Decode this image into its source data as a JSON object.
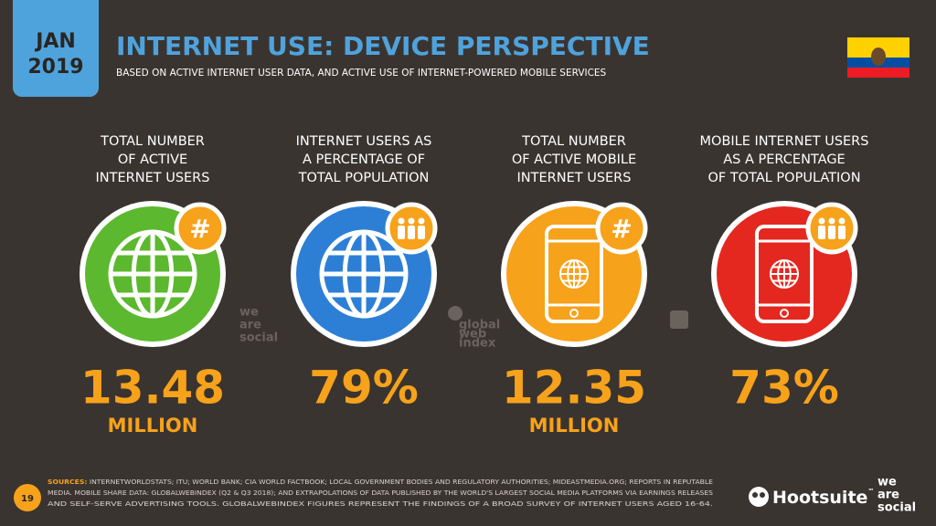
{
  "header": {
    "date_lines": [
      "JAN",
      "2019"
    ],
    "title": "INTERNET USE: DEVICE PERSPECTIVE",
    "subtitle": "BASED ON ACTIVE INTERNET USER DATA, AND ACTIVE USE OF INTERNET-POWERED MOBILE SERVICES"
  },
  "stats": [
    {
      "label_lines": [
        "TOTAL NUMBER",
        "OF ACTIVE",
        "INTERNET USERS"
      ],
      "badge": "#",
      "value": "13.48",
      "unit": "MILLION"
    },
    {
      "label_lines": [
        "INTERNET USERS AS",
        "A PERCENTAGE OF",
        "TOTAL POPULATION"
      ],
      "value": "79%"
    },
    {
      "label_lines": [
        "TOTAL NUMBER",
        "OF ACTIVE MOBILE",
        "INTERNET USERS"
      ],
      "badge": "#",
      "value": "12.35",
      "unit": "MILLION"
    },
    {
      "label_lines": [
        "MOBILE INTERNET USERS",
        "AS A PERCENTAGE",
        "OF TOTAL POPULATION"
      ],
      "value": "73%"
    }
  ],
  "watermarks": {
    "we_are_social": [
      "we",
      "are",
      "social"
    ],
    "globalwebindex": [
      "global",
      "web",
      "index"
    ]
  },
  "footer": {
    "page_number": "19",
    "sources_label": "SOURCES:",
    "sources_lines": [
      "INTERNETWORLDSTATS; ITU; WORLD BANK; CIA WORLD FACTBOOK; LOCAL GOVERNMENT BODIES AND REGULATORY AUTHORITIES; MIDEASTMEDIA.ORG; REPORTS IN REPUTABLE",
      "MEDIA. MOBILE SHARE DATA: GLOBALWEBINDEX (Q2 & Q3 2018); AND EXTRAPOLATIONS OF DATA PUBLISHED BY THE WORLD'S LARGEST SOCIAL MEDIA PLATFORMS VIA EARNINGS RELEASES",
      "AND SELF-SERVE ADVERTISING TOOLS. GLOBALWEBINDEX FIGURES REPRESENT THE FINDINGS OF A BROAD SURVEY OF INTERNET USERS AGED 16-64."
    ],
    "brand": "Hootsuite",
    "brand_mark": "™",
    "partner_lines": [
      "we",
      "are",
      "social"
    ]
  }
}
